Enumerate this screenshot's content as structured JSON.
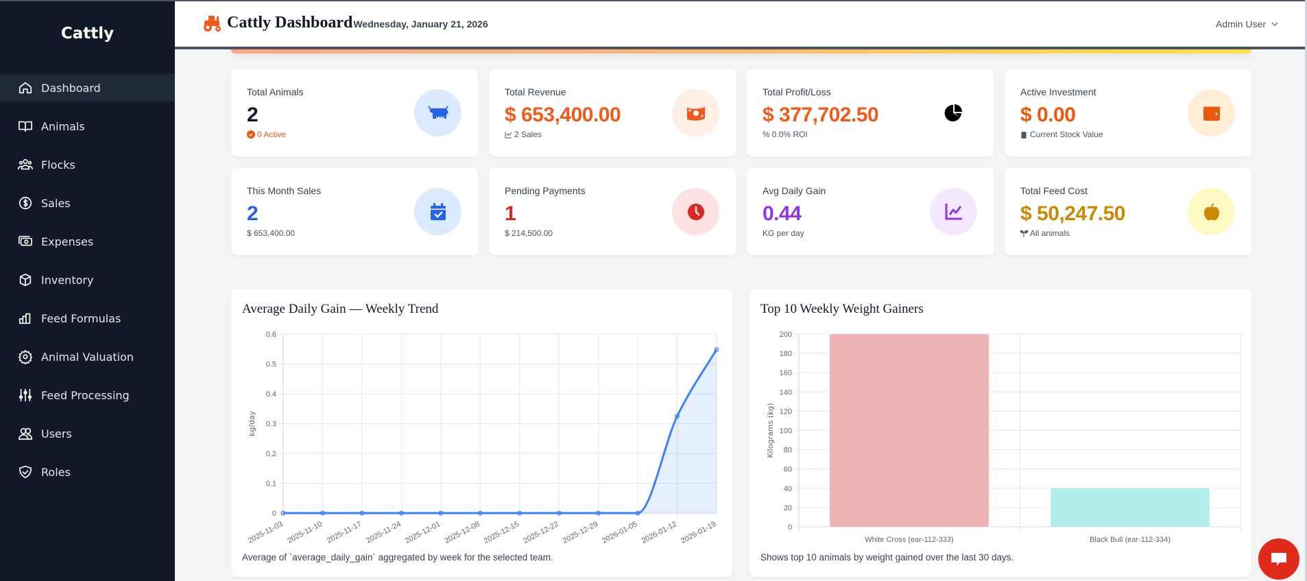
{
  "sidebar": {
    "brand": "Cattly",
    "items": [
      {
        "label": "Dashboard",
        "icon": "home-icon",
        "active": true
      },
      {
        "label": "Animals",
        "icon": "book-icon"
      },
      {
        "label": "Flocks",
        "icon": "users-group-icon"
      },
      {
        "label": "Sales",
        "icon": "dollar-circle-icon"
      },
      {
        "label": "Expenses",
        "icon": "cash-icon"
      },
      {
        "label": "Inventory",
        "icon": "cube-icon"
      },
      {
        "label": "Feed Formulas",
        "icon": "bar-chart-icon"
      },
      {
        "label": "Animal Valuation",
        "icon": "gear-icon"
      },
      {
        "label": "Feed Processing",
        "icon": "sliders-icon"
      },
      {
        "label": "Users",
        "icon": "users-icon"
      },
      {
        "label": "Roles",
        "icon": "shield-icon"
      }
    ]
  },
  "header": {
    "title": "Cattly Dashboard",
    "date": "Wednesday, January 21, 2026",
    "user": "Admin User"
  },
  "stats": [
    {
      "label": "Total Animals",
      "value": "2",
      "sub": "0 Active",
      "color": "#111827",
      "sub_color": "#ea580c",
      "icon": "cow-icon"
    },
    {
      "label": "Total Revenue",
      "value": "$ 653,400.00",
      "sub": "2 Sales",
      "color": "#f05a1a",
      "icon": "money-bill-icon"
    },
    {
      "label": "Total Profit/Loss",
      "value": "$ 377,702.50",
      "sub": "0.0% ROI",
      "color": "#f05a1a",
      "icon": "pie-chart-icon"
    },
    {
      "label": "Active Investment",
      "value": "$ 0.00",
      "sub": "Current Stock Value",
      "color": "#ea580c",
      "icon": "wallet-icon"
    },
    {
      "label": "This Month Sales",
      "value": "2",
      "sub": "$ 653,400.00",
      "color": "#2563eb",
      "icon": "calendar-check-icon"
    },
    {
      "label": "Pending Payments",
      "value": "1",
      "sub": "$ 214,500.00",
      "color": "#dc2626",
      "icon": "clock-icon"
    },
    {
      "label": "Avg Daily Gain",
      "value": "0.44",
      "sub": "KG per day",
      "color": "#9333ea",
      "icon": "trend-chart-icon"
    },
    {
      "label": "Total Feed Cost",
      "value": "$ 50,247.50",
      "sub": "All animals",
      "color": "#ca8a04",
      "icon": "apple-icon"
    }
  ],
  "chart_data": [
    {
      "type": "line",
      "title": "Average Daily Gain — Weekly Trend",
      "ylabel": "kg/day",
      "ylim": [
        0,
        0.6
      ],
      "yticks": [
        "0",
        "0.1",
        "0.2",
        "0.3",
        "0.4",
        "0.5",
        "0.6"
      ],
      "categories": [
        "2025-11-03",
        "2025-11-10",
        "2025-11-17",
        "2025-11-24",
        "2025-12-01",
        "2025-12-08",
        "2025-12-15",
        "2025-12-22",
        "2025-12-29",
        "2026-01-05",
        "2026-01-12",
        "2026-01-19"
      ],
      "values": [
        0,
        0,
        0,
        0,
        0,
        0,
        0,
        0,
        0,
        0,
        0.325,
        0.548
      ],
      "color": "#3b82f6",
      "fill": true,
      "grid": true,
      "caption": "Average of `average_daily_gain` aggregated by week for the selected team."
    },
    {
      "type": "bar",
      "title": "Top 10 Weekly Weight Gainers",
      "ylabel": "Kilograms (kg)",
      "ylim": [
        0,
        200
      ],
      "yticks": [
        "0",
        "20",
        "40",
        "60",
        "80",
        "100",
        "120",
        "140",
        "160",
        "180",
        "200"
      ],
      "categories": [
        "White Cross (ear-112-333)",
        "Black Bull (ear-112-334)"
      ],
      "values": [
        200,
        40
      ],
      "colors": [
        "#eeb2b2",
        "#b2eeee"
      ],
      "grid": true,
      "caption": "Shows top 10 animals by weight gained over the last 30 days."
    }
  ]
}
